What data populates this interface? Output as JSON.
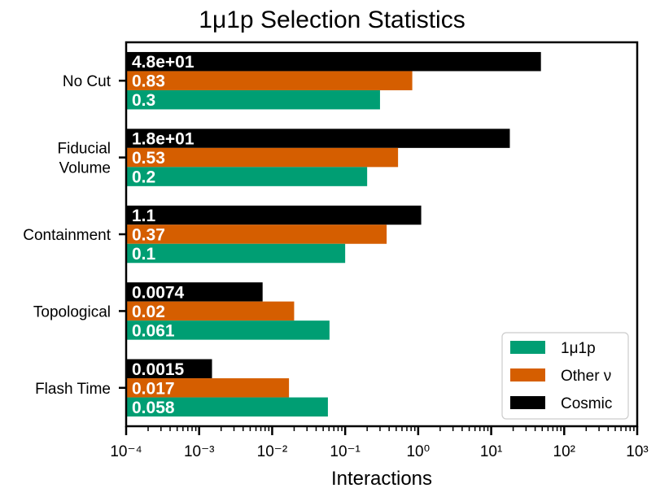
{
  "chart_data": {
    "type": "bar",
    "orientation": "horizontal",
    "title": "1μ1p Selection Statistics",
    "xlabel": "Interactions",
    "ylabel": "",
    "xscale": "log",
    "xlim": [
      0.0001,
      1000
    ],
    "x_ticks": [
      "10⁻⁴",
      "10⁻³",
      "10⁻²",
      "10⁻¹",
      "10⁰",
      "10¹",
      "10²",
      "10³"
    ],
    "categories": [
      "No Cut",
      "Fiducial\nVolume",
      "Containment",
      "Topological",
      "Flash Time"
    ],
    "series": [
      {
        "name": "Cosmic",
        "color": "#000000",
        "values": [
          48,
          18,
          1.1,
          0.0074,
          0.0015
        ],
        "labels": [
          "4.8e+01",
          "1.8e+01",
          "1.1",
          "0.0074",
          "0.0015"
        ]
      },
      {
        "name": "Other ν",
        "color": "#d55e00",
        "values": [
          0.83,
          0.53,
          0.37,
          0.02,
          0.017
        ],
        "labels": [
          "0.83",
          "0.53",
          "0.37",
          "0.02",
          "0.017"
        ]
      },
      {
        "name": "1μ1p",
        "color": "#009e73",
        "values": [
          0.3,
          0.2,
          0.1,
          0.061,
          0.058
        ],
        "labels": [
          "0.3",
          "0.2",
          "0.1",
          "0.061",
          "0.058"
        ]
      }
    ],
    "legend": {
      "position": "lower-right",
      "entries": [
        {
          "name": "1μ1p",
          "color": "#009e73"
        },
        {
          "name": "Other ν",
          "color": "#d55e00"
        },
        {
          "name": "Cosmic",
          "color": "#000000"
        }
      ]
    },
    "grid": false
  }
}
